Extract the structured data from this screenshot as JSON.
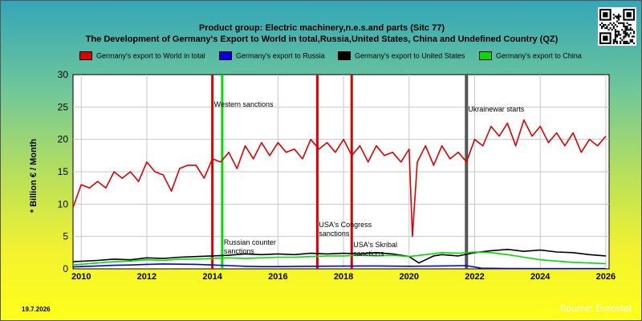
{
  "chart_data": {
    "type": "line",
    "title": "Product group: Electric machinery,n.e.s.and parts (Sitc 77)",
    "subtitle": "The Development of Germany's Export to World in total,Russia,United States, China and Undefined Country (QZ)",
    "ylabel": "* Billion € / Month",
    "xlabel": "",
    "xlim": [
      2009.75,
      2026.1
    ],
    "ylim": [
      0,
      30
    ],
    "xticks": [
      "2010",
      "2012",
      "2014",
      "2016",
      "2018",
      "2020",
      "2022",
      "2024",
      "2026"
    ],
    "yticks": [
      "0",
      "5",
      "10",
      "15",
      "20",
      "25",
      "30"
    ],
    "grid": true,
    "legend_position": "top",
    "series": [
      {
        "name": "Germany's export to World in total",
        "color": "#e00000",
        "x": [
          2009.75,
          2010.0,
          2010.25,
          2010.5,
          2010.75,
          2011.0,
          2011.25,
          2011.5,
          2011.75,
          2012.0,
          2012.25,
          2012.5,
          2012.75,
          2013.0,
          2013.25,
          2013.5,
          2013.75,
          2014.0,
          2014.25,
          2014.5,
          2014.75,
          2015.0,
          2015.25,
          2015.5,
          2015.75,
          2016.0,
          2016.25,
          2016.5,
          2016.75,
          2017.0,
          2017.25,
          2017.5,
          2017.75,
          2018.0,
          2018.25,
          2018.5,
          2018.75,
          2019.0,
          2019.25,
          2019.5,
          2019.75,
          2020.0,
          2020.1,
          2020.25,
          2020.5,
          2020.75,
          2021.0,
          2021.25,
          2021.5,
          2021.75,
          2022.0,
          2022.25,
          2022.5,
          2022.75,
          2023.0,
          2023.25,
          2023.5,
          2023.75,
          2024.0,
          2024.25,
          2024.5,
          2024.75,
          2025.0,
          2025.25,
          2025.5,
          2025.75,
          2026.0
        ],
        "values": [
          9.5,
          13,
          12.5,
          13.5,
          12.5,
          15,
          14,
          15,
          13.5,
          16.5,
          15,
          14.5,
          12,
          15.5,
          16,
          16,
          14,
          17,
          16.5,
          18,
          15.5,
          19,
          17,
          19.5,
          17.5,
          19.5,
          18,
          18.5,
          17,
          20,
          18.5,
          19.5,
          18,
          20,
          17.5,
          19,
          16.5,
          19,
          17.5,
          18,
          16.5,
          18.5,
          5,
          16.5,
          19,
          16,
          19,
          17,
          18,
          16.5,
          20,
          19,
          22,
          20.5,
          22.5,
          19,
          23,
          20.5,
          22,
          19.5,
          21,
          19,
          21,
          18,
          20,
          19,
          20.5
        ]
      },
      {
        "name": "Germany's export to Russia",
        "color": "#0000e0",
        "x": [
          2009.75,
          2010.5,
          2011.0,
          2011.5,
          2012.0,
          2012.5,
          2013.0,
          2013.5,
          2014.0,
          2014.5,
          2015.0,
          2015.5,
          2016.0,
          2017.0,
          2018.0,
          2019.0,
          2020.0,
          2021.0,
          2021.75,
          2022.2,
          2023.0,
          2024.0,
          2025.0,
          2026.0
        ],
        "values": [
          0.3,
          0.45,
          0.55,
          0.6,
          0.7,
          0.75,
          0.72,
          0.7,
          0.6,
          0.5,
          0.4,
          0.35,
          0.35,
          0.4,
          0.42,
          0.45,
          0.4,
          0.45,
          0.5,
          0.1,
          0.05,
          0.04,
          0.04,
          0.04
        ]
      },
      {
        "name": "Germany's export to United States",
        "color": "#000000",
        "x": [
          2009.75,
          2010.5,
          2011.0,
          2011.5,
          2012.0,
          2012.5,
          2013.0,
          2013.5,
          2014.0,
          2014.5,
          2015.0,
          2015.5,
          2016.0,
          2016.5,
          2017.0,
          2017.5,
          2018.0,
          2018.5,
          2019.0,
          2019.5,
          2020.0,
          2020.3,
          2020.75,
          2021.0,
          2021.5,
          2022.0,
          2022.5,
          2023.0,
          2023.5,
          2024.0,
          2024.5,
          2025.0,
          2025.5,
          2026.0
        ],
        "values": [
          1.1,
          1.3,
          1.5,
          1.4,
          1.7,
          1.6,
          1.8,
          1.9,
          2.0,
          2.1,
          2.3,
          2.2,
          2.3,
          2.2,
          2.4,
          2.3,
          2.4,
          2.3,
          2.5,
          2.3,
          1.9,
          0.9,
          2.0,
          2.2,
          2.0,
          2.5,
          2.8,
          3.0,
          2.7,
          2.9,
          2.6,
          2.5,
          2.2,
          2.0
        ]
      },
      {
        "name": "Germany's export to China",
        "color": "#00dd00",
        "x": [
          2009.75,
          2010.5,
          2011.0,
          2011.5,
          2012.0,
          2012.5,
          2013.0,
          2013.5,
          2014.0,
          2014.5,
          2015.0,
          2015.5,
          2016.0,
          2016.5,
          2017.0,
          2017.5,
          2018.0,
          2018.5,
          2019.0,
          2019.5,
          2020.0,
          2020.5,
          2021.0,
          2021.5,
          2022.0,
          2022.5,
          2023.0,
          2023.5,
          2024.0,
          2024.5,
          2025.0,
          2025.5,
          2026.0
        ],
        "values": [
          0.6,
          0.9,
          1.1,
          1.2,
          1.4,
          1.3,
          1.5,
          1.5,
          1.6,
          1.7,
          1.6,
          1.7,
          1.8,
          1.8,
          1.9,
          2.0,
          2.0,
          2.1,
          2.0,
          2.1,
          1.9,
          2.2,
          2.5,
          2.4,
          2.6,
          2.5,
          2.2,
          1.8,
          1.4,
          1.2,
          1.0,
          0.9,
          0.8
        ]
      }
    ],
    "annotations": [
      {
        "label": "Western sanctions",
        "x": 2014.0,
        "color": "#e00000"
      },
      {
        "label": "Russian counter sanctions",
        "x": 2014.3,
        "color": "#00dd00"
      },
      {
        "label": "USA's Congress sanctions",
        "x": 2017.2,
        "color": "#e00000"
      },
      {
        "label": "USA's Skribal sanctions",
        "x": 2018.25,
        "color": "#e00000"
      },
      {
        "label": "Ukrainewar starts",
        "x": 2021.75,
        "color": "#555555"
      }
    ]
  },
  "footer": {
    "date": "19.7.2026",
    "source": "Source: Eurostat"
  }
}
